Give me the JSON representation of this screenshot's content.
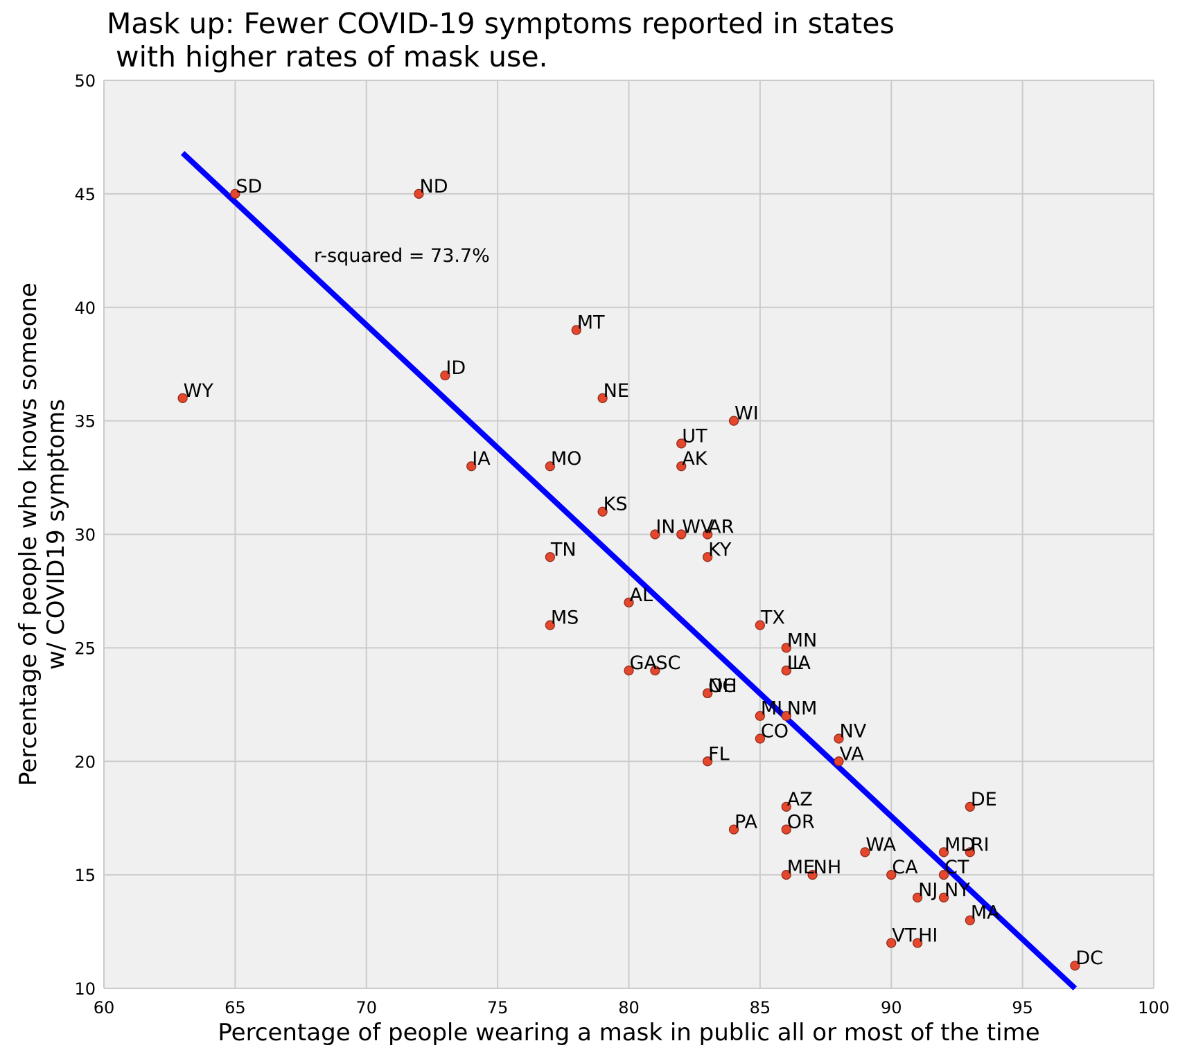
{
  "chart_data": {
    "type": "scatter",
    "title": "Mask up: Fewer COVID-19 symptoms reported in states\n with higher rates of mask use.",
    "xlabel": "Percentage of people wearing a mask in public all or most of the time",
    "ylabel": "Percentage of people who knows someone\nw/ COVID19 symptoms",
    "xlim": [
      60,
      100
    ],
    "ylim": [
      10,
      50
    ],
    "xticks": [
      60,
      65,
      70,
      75,
      80,
      85,
      90,
      95,
      100
    ],
    "yticks": [
      10,
      15,
      20,
      25,
      30,
      35,
      40,
      45,
      50
    ],
    "grid": true,
    "annotation": "r-squared = 73.7%",
    "annotation_pos": [
      68,
      42
    ],
    "point_color": "#e5472d",
    "point_edge": "#8a2a1a",
    "line_color": "#0000ff",
    "background": "#f0f0f0",
    "grid_color": "#cbcbcb",
    "fit_line": {
      "x": [
        63,
        97
      ],
      "y": [
        46.8,
        10.0
      ]
    },
    "points": [
      {
        "label": "SD",
        "x": 65,
        "y": 45
      },
      {
        "label": "ND",
        "x": 72,
        "y": 45
      },
      {
        "label": "MT",
        "x": 78,
        "y": 39
      },
      {
        "label": "ID",
        "x": 73,
        "y": 37
      },
      {
        "label": "WY",
        "x": 63,
        "y": 36
      },
      {
        "label": "NE",
        "x": 79,
        "y": 36
      },
      {
        "label": "WI",
        "x": 84,
        "y": 35
      },
      {
        "label": "UT",
        "x": 82,
        "y": 34
      },
      {
        "label": "IA",
        "x": 74,
        "y": 33
      },
      {
        "label": "MO",
        "x": 77,
        "y": 33
      },
      {
        "label": "AK",
        "x": 82,
        "y": 33
      },
      {
        "label": "KS",
        "x": 79,
        "y": 31
      },
      {
        "label": "IN",
        "x": 81,
        "y": 30
      },
      {
        "label": "WV",
        "x": 82,
        "y": 30
      },
      {
        "label": "AR",
        "x": 83,
        "y": 30
      },
      {
        "label": "TN",
        "x": 77,
        "y": 29
      },
      {
        "label": "KY",
        "x": 83,
        "y": 29
      },
      {
        "label": "AL",
        "x": 80,
        "y": 27
      },
      {
        "label": "MS",
        "x": 77,
        "y": 26
      },
      {
        "label": "TX",
        "x": 85,
        "y": 26
      },
      {
        "label": "MN",
        "x": 86,
        "y": 25
      },
      {
        "label": "GA",
        "x": 80,
        "y": 24
      },
      {
        "label": "SC",
        "x": 81,
        "y": 24
      },
      {
        "label": "IL",
        "x": 86,
        "y": 24
      },
      {
        "label": "LA",
        "x": 86,
        "y": 24
      },
      {
        "label": "NC",
        "x": 83,
        "y": 23
      },
      {
        "label": "OH",
        "x": 83,
        "y": 23
      },
      {
        "label": "MI",
        "x": 85,
        "y": 22
      },
      {
        "label": "NM",
        "x": 86,
        "y": 22
      },
      {
        "label": "CO",
        "x": 85,
        "y": 21
      },
      {
        "label": "NV",
        "x": 88,
        "y": 21
      },
      {
        "label": "FL",
        "x": 83,
        "y": 20
      },
      {
        "label": "VA",
        "x": 88,
        "y": 20
      },
      {
        "label": "AZ",
        "x": 86,
        "y": 18
      },
      {
        "label": "DE",
        "x": 93,
        "y": 18
      },
      {
        "label": "PA",
        "x": 84,
        "y": 17
      },
      {
        "label": "OR",
        "x": 86,
        "y": 17
      },
      {
        "label": "WA",
        "x": 89,
        "y": 16
      },
      {
        "label": "MD",
        "x": 92,
        "y": 16
      },
      {
        "label": "RI",
        "x": 93,
        "y": 16
      },
      {
        "label": "ME",
        "x": 86,
        "y": 15
      },
      {
        "label": "NH",
        "x": 87,
        "y": 15
      },
      {
        "label": "CA",
        "x": 90,
        "y": 15
      },
      {
        "label": "CT",
        "x": 92,
        "y": 15
      },
      {
        "label": "NJ",
        "x": 91,
        "y": 14
      },
      {
        "label": "NY",
        "x": 92,
        "y": 14
      },
      {
        "label": "MA",
        "x": 93,
        "y": 13
      },
      {
        "label": "VT",
        "x": 90,
        "y": 12
      },
      {
        "label": "HI",
        "x": 91,
        "y": 12
      },
      {
        "label": "DC",
        "x": 97,
        "y": 11
      }
    ]
  }
}
